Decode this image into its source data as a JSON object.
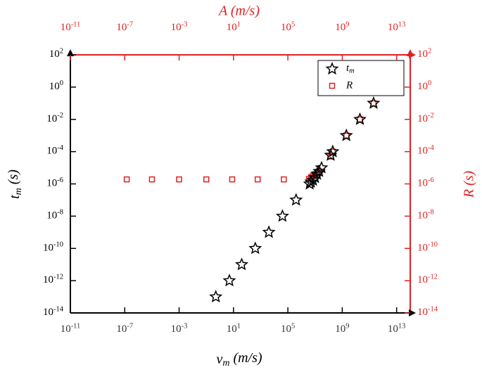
{
  "chart_data": {
    "type": "scatter",
    "x_label": "v_m (m/s)",
    "x2_label": "A (m/s)",
    "y_label": "t_m (s)",
    "y2_label": "R (s)",
    "log_x": true,
    "log_y": true,
    "xlim": [
      1e-11,
      100000000000000.0
    ],
    "x2lim": [
      1e-11,
      100000000000000.0
    ],
    "ylim": [
      1e-14,
      100
    ],
    "y2lim": [
      1e-14,
      100
    ],
    "xticks": [
      {
        "value": 1e-11,
        "label": "10^-11"
      },
      {
        "value": 1e-07,
        "label": "10^-7"
      },
      {
        "value": 0.001,
        "label": "10^-3"
      },
      {
        "value": 10,
        "label": "10^1"
      },
      {
        "value": 100000,
        "label": "10^5"
      },
      {
        "value": 1000000000.0,
        "label": "10^9"
      },
      {
        "value": 10000000000000.0,
        "label": "10^13"
      }
    ],
    "x2ticks": [
      {
        "value": 1e-11,
        "label": "10^-11"
      },
      {
        "value": 1e-07,
        "label": "10^-7"
      },
      {
        "value": 0.001,
        "label": "10^-3"
      },
      {
        "value": 10,
        "label": "10^1"
      },
      {
        "value": 100000,
        "label": "10^5"
      },
      {
        "value": 1000000000.0,
        "label": "10^9"
      },
      {
        "value": 10000000000000.0,
        "label": "10^13"
      }
    ],
    "yticks": [
      {
        "value": 100,
        "label": "10^2"
      },
      {
        "value": 1,
        "label": "10^0"
      },
      {
        "value": 0.01,
        "label": "10^-2"
      },
      {
        "value": 0.0001,
        "label": "10^-4"
      },
      {
        "value": 1e-06,
        "label": "10^-6"
      },
      {
        "value": 1e-08,
        "label": "10^-8"
      },
      {
        "value": 1e-10,
        "label": "10^-10"
      },
      {
        "value": 1e-12,
        "label": "10^-12"
      },
      {
        "value": 1e-14,
        "label": "10^-14"
      }
    ],
    "y2ticks": [
      {
        "value": 100,
        "label": "10^2"
      },
      {
        "value": 1,
        "label": "10^0"
      },
      {
        "value": 0.01,
        "label": "10^-2"
      },
      {
        "value": 0.0001,
        "label": "10^-4"
      },
      {
        "value": 1e-06,
        "label": "10^-6"
      },
      {
        "value": 1e-08,
        "label": "10^-8"
      },
      {
        "value": 1e-10,
        "label": "10^-10"
      },
      {
        "value": 1e-12,
        "label": "10^-12"
      },
      {
        "value": 1e-14,
        "label": "10^-14"
      }
    ],
    "legend": "upper right",
    "series": [
      {
        "name": "t_m",
        "color": "#000000",
        "marker": "star",
        "x": [
          0.5,
          5,
          40,
          400,
          4000,
          40000,
          400000,
          4000000,
          5000000,
          7000000,
          10000000,
          14000000,
          20000000,
          30000000,
          140000000,
          200000000,
          2000000000,
          20000000000,
          200000000000
        ],
        "values": [
          1e-13,
          1e-12,
          1e-11,
          1e-10,
          1e-09,
          1e-08,
          1e-07,
          1e-06,
          1.3e-06,
          1.7e-06,
          2.5e-06,
          4e-06,
          6e-06,
          1e-05,
          6e-05,
          0.0001,
          0.001,
          0.01,
          0.1
        ]
      },
      {
        "name": "R",
        "color": "#e02020",
        "marker": "square",
        "axis": "y2",
        "xaxis": "x2",
        "x": [
          1.4e-07,
          1e-05,
          0.001,
          0.1,
          8,
          600,
          50000,
          3500000,
          5000000,
          7000000,
          10000000,
          15000000,
          20000000,
          140000000,
          200000000,
          2000000000,
          20000000000,
          200000000000
        ],
        "values": [
          1.9e-06,
          1.9e-06,
          1.9e-06,
          1.9e-06,
          1.9e-06,
          1.9e-06,
          1.9e-06,
          2e-06,
          2.6e-06,
          3.2e-06,
          4e-06,
          5e-06,
          6e-06,
          5e-05,
          0.0001,
          0.001,
          0.01,
          0.1
        ]
      }
    ]
  }
}
